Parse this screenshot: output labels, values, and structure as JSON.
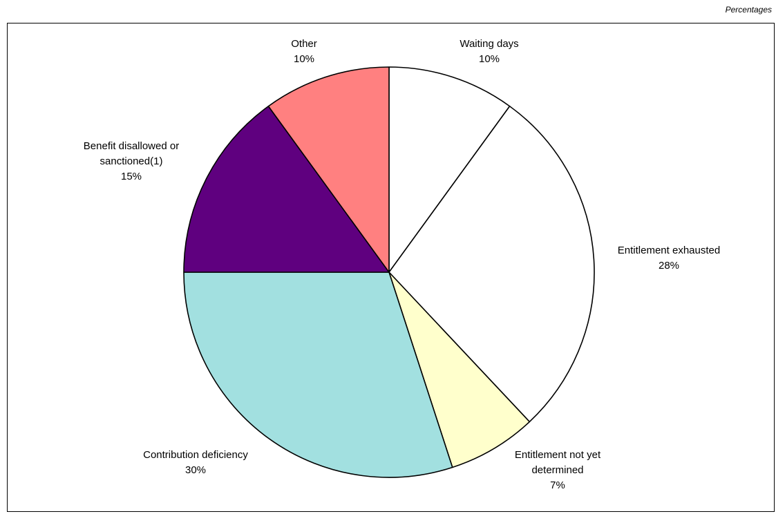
{
  "units_label": "Percentages",
  "chart_data": {
    "type": "pie",
    "slices": [
      {
        "name": "Waiting days",
        "label_lines": [
          "Waiting days"
        ],
        "value": 10,
        "display": "10%",
        "color": "#ffffff"
      },
      {
        "name": "Entitlement exhausted",
        "label_lines": [
          "Entitlement exhausted"
        ],
        "value": 28,
        "display": "28%",
        "color": "#ffffff"
      },
      {
        "name": "Entitlement not yet determined",
        "label_lines": [
          "Entitlement not yet",
          "determined"
        ],
        "value": 7,
        "display": "7%",
        "color": "#ffffcc"
      },
      {
        "name": "Contribution deficiency",
        "label_lines": [
          "Contribution deficiency"
        ],
        "value": 30,
        "display": "30%",
        "color": "#a2e0e0"
      },
      {
        "name": "Benefit disallowed or sanctioned(1)",
        "label_lines": [
          "Benefit disallowed or",
          "sanctioned(1)"
        ],
        "value": 15,
        "display": "15%",
        "color": "#5f007f"
      },
      {
        "name": "Other",
        "label_lines": [
          "Other"
        ],
        "value": 10,
        "display": "10%",
        "color": "#ff8080"
      }
    ],
    "start": "12 o'clock",
    "direction": "clockwise",
    "legend": "none (labels beside slices)"
  }
}
